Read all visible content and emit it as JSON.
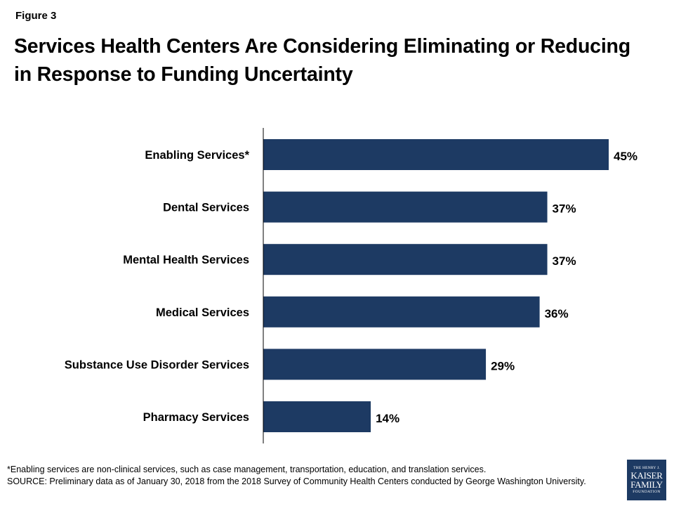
{
  "figure_label": "Figure 3",
  "chart_data": {
    "type": "bar",
    "orientation": "horizontal",
    "title": "Services Health Centers Are Considering Eliminating or Reducing in Response to Funding Uncertainty",
    "categories": [
      "Enabling Services*",
      "Dental Services",
      "Mental Health Services",
      "Medical Services",
      "Substance Use Disorder Services",
      "Pharmacy Services"
    ],
    "values": [
      45,
      37,
      37,
      36,
      29,
      14
    ],
    "value_labels": [
      "45%",
      "37%",
      "37%",
      "36%",
      "29%",
      "14%"
    ],
    "xlim": [
      0,
      45
    ],
    "bar_color": "#1d3a63",
    "grid": false,
    "legend": "none"
  },
  "footnote": {
    "note": "*Enabling services are non-clinical services, such as case management, transportation, education, and translation services.",
    "source": "SOURCE: Preliminary data as of January 30, 2018 from the 2018 Survey of Community Health Centers conducted by George Washington University."
  },
  "logo": {
    "line1": "THE HENRY J.",
    "line2": "KAISER",
    "line3": "FAMILY",
    "line4": "FOUNDATION",
    "color": "#1d3a63"
  }
}
